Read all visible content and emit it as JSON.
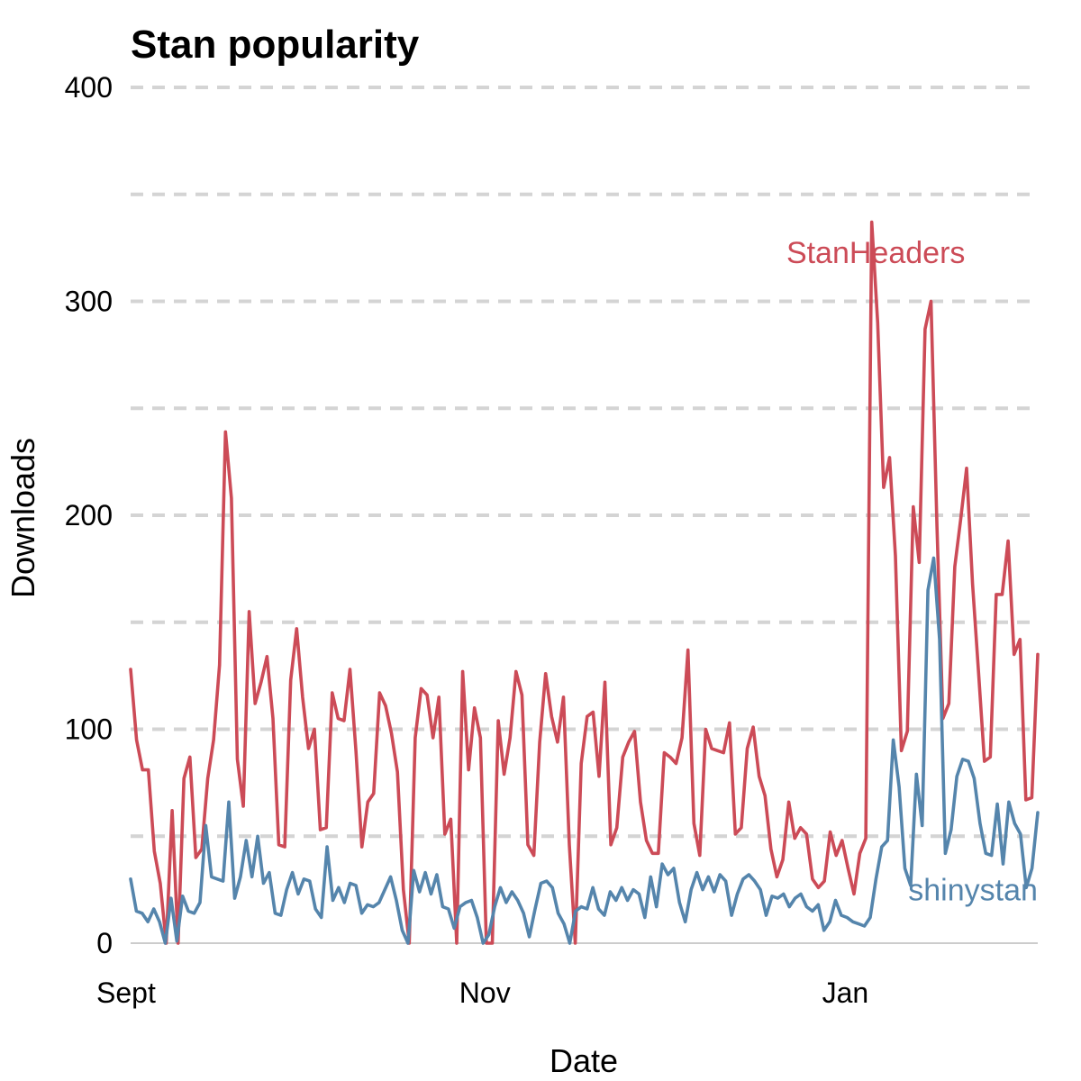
{
  "chart_data": {
    "type": "line",
    "title": "Stan popularity",
    "xlabel": "Date",
    "ylabel": "Downloads",
    "ylim": [
      0,
      400
    ],
    "xlim": [
      0,
      140
    ],
    "y_ticks": [
      0,
      100,
      200,
      300,
      400
    ],
    "y_minor_ticks": [
      50,
      150,
      250,
      350
    ],
    "x_ticks": [
      {
        "value": 0,
        "label": "Sept"
      },
      {
        "value": 56,
        "label": "Nov"
      },
      {
        "value": 112,
        "label": "Jan"
      }
    ],
    "grid": "horizontal dashed",
    "series": [
      {
        "name": "StanHeaders",
        "color": "#cc4b57",
        "label_text": "StanHeaders",
        "label_at": [
          115,
          318
        ],
        "x_unit": "days since Sept 1",
        "values": [
          128,
          95,
          81,
          81,
          43,
          28,
          0,
          62,
          0,
          77,
          87,
          40,
          44,
          77,
          95,
          130,
          239,
          208,
          86,
          64,
          155,
          112,
          122,
          134,
          105,
          46,
          45,
          123,
          147,
          115,
          91,
          100,
          53,
          54,
          117,
          105,
          104,
          128,
          90,
          45,
          66,
          70,
          117,
          111,
          98,
          80,
          25,
          0,
          96,
          119,
          116,
          96,
          115,
          51,
          58,
          0,
          127,
          81,
          110,
          96,
          0,
          0,
          104,
          79,
          96,
          127,
          116,
          46,
          41,
          94,
          126,
          106,
          94,
          115,
          46,
          0,
          84,
          106,
          108,
          78,
          122,
          46,
          54,
          87,
          94,
          99,
          66,
          48,
          42,
          42,
          89,
          87,
          84,
          96,
          137,
          56,
          41,
          100,
          91,
          90,
          89,
          103,
          51,
          54,
          91,
          101,
          78,
          69,
          44,
          31,
          39,
          66,
          49,
          54,
          51,
          30,
          26,
          29,
          52,
          41,
          48,
          35,
          23,
          42,
          49,
          337,
          290,
          213,
          227,
          181,
          90,
          99,
          204,
          178,
          287,
          300,
          195,
          105,
          112,
          176,
          198,
          222,
          168,
          127,
          85,
          87,
          163,
          163,
          188,
          135,
          142,
          67,
          68,
          135
        ]
      },
      {
        "name": "shinystan",
        "color": "#5585ac",
        "label_text": "shinystan",
        "label_at": [
          130,
          20
        ],
        "x_unit": "days since Sept 1",
        "values": [
          30,
          15,
          14,
          10,
          16,
          10,
          0,
          21,
          1,
          22,
          15,
          14,
          19,
          55,
          31,
          30,
          29,
          66,
          21,
          31,
          48,
          31,
          50,
          28,
          33,
          14,
          13,
          25,
          33,
          23,
          30,
          29,
          16,
          12,
          45,
          20,
          26,
          19,
          28,
          27,
          14,
          18,
          17,
          19,
          25,
          31,
          20,
          6,
          0,
          34,
          24,
          33,
          23,
          32,
          17,
          16,
          7,
          17,
          19,
          20,
          12,
          0,
          4,
          17,
          26,
          19,
          24,
          20,
          14,
          3,
          16,
          28,
          29,
          26,
          14,
          9,
          0,
          15,
          17,
          16,
          26,
          16,
          13,
          24,
          20,
          26,
          20,
          25,
          23,
          12,
          31,
          17,
          37,
          32,
          35,
          19,
          10,
          25,
          33,
          25,
          31,
          24,
          32,
          29,
          13,
          23,
          30,
          32,
          29,
          25,
          13,
          22,
          21,
          23,
          17,
          21,
          23,
          17,
          15,
          18,
          6,
          10,
          20,
          13,
          12,
          10,
          9,
          8,
          12,
          30,
          45,
          48,
          95,
          73,
          35,
          27,
          79,
          55,
          165,
          180,
          142,
          42,
          53,
          78,
          86,
          85,
          77,
          56,
          42,
          41,
          65,
          37,
          66,
          56,
          51,
          26,
          35,
          61
        ]
      }
    ]
  }
}
